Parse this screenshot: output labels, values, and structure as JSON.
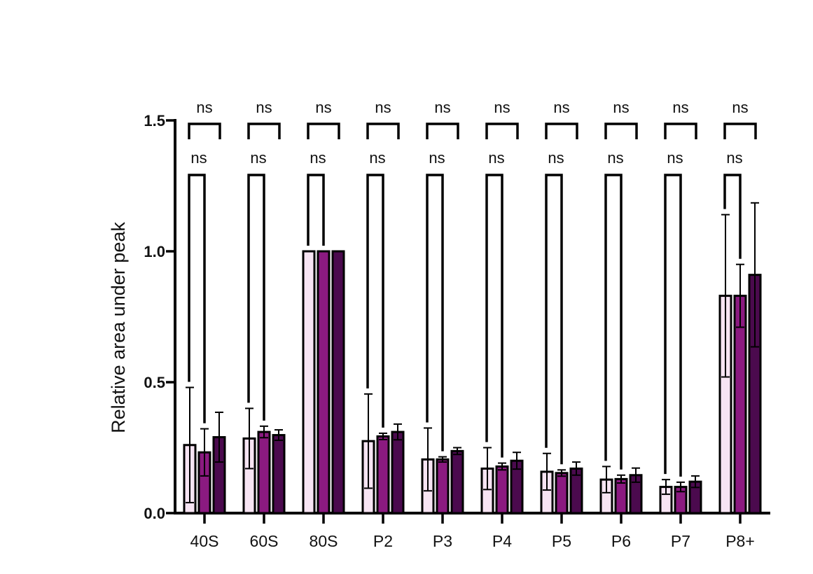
{
  "chart_data": {
    "type": "bar",
    "ylabel": "Relative area under peak",
    "xlabel": "",
    "ylim": [
      0,
      1.5
    ],
    "yticks": [
      "0.0",
      "0.5",
      "1.0",
      "1.5"
    ],
    "grid": false,
    "categories": [
      "40S",
      "60S",
      "80S",
      "P2",
      "P3",
      "P4",
      "P5",
      "P6",
      "P7",
      "P8+"
    ],
    "series": [
      {
        "color": "#f7e4f3",
        "values": [
          0.26,
          0.285,
          1.0,
          0.275,
          0.205,
          0.17,
          0.158,
          0.128,
          0.1,
          0.83
        ],
        "errors": [
          0.22,
          0.115,
          0.0,
          0.18,
          0.12,
          0.08,
          0.07,
          0.05,
          0.028,
          0.31
        ]
      },
      {
        "color": "#8b1a80",
        "values": [
          0.232,
          0.31,
          1.0,
          0.293,
          0.205,
          0.178,
          0.153,
          0.13,
          0.1,
          0.83
        ],
        "errors": [
          0.09,
          0.022,
          0.0,
          0.012,
          0.01,
          0.013,
          0.012,
          0.015,
          0.018,
          0.12
        ]
      },
      {
        "color": "#4b0a4e",
        "values": [
          0.29,
          0.298,
          1.0,
          0.31,
          0.237,
          0.2,
          0.17,
          0.145,
          0.12,
          0.91
        ],
        "errors": [
          0.095,
          0.02,
          0.0,
          0.03,
          0.013,
          0.032,
          0.025,
          0.027,
          0.022,
          0.275
        ]
      }
    ],
    "annotations": {
      "upper_brackets": [
        "ns",
        "ns",
        "ns",
        "ns",
        "ns",
        "ns",
        "ns",
        "ns",
        "ns",
        "ns"
      ],
      "lower_brackets": [
        "ns",
        "ns",
        "ns",
        "ns",
        "ns",
        "ns",
        "ns",
        "ns",
        "ns",
        "ns"
      ]
    }
  }
}
